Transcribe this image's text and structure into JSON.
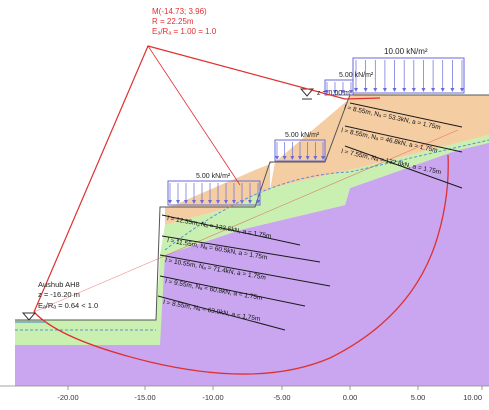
{
  "circle": {
    "center_label": "M(-14.73; 3.96)",
    "radius_label": "R = 22.25m",
    "ratio_label": "Eₐ/Rₐ = 1.00 = 1.0"
  },
  "loads": [
    {
      "label": "10.00 kN/m²"
    },
    {
      "label": "5.00 kN/m²"
    },
    {
      "label": "5.00 kN/m²"
    },
    {
      "label": "5.00 kN/m²"
    }
  ],
  "water_level": {
    "label": "z = 0.00 m"
  },
  "excavation": {
    "title": "Aushub AH8",
    "depth": "z = -16.20 m",
    "ratio": "Eₐ/Rₐ = 0.64 < 1.0"
  },
  "anchors": [
    {
      "label": "l = 8.55m, Nₐ = 53.3kN, a = 1.75m"
    },
    {
      "label": "l = 8.55m, Nₐ = 46.8kN, a = 1.75m"
    },
    {
      "label": "l = 7.55m, Nₐ = 132.8kN, a = 1.75m"
    },
    {
      "label": "l = 12.55m, Nₐ = 133.5kN, a = 1.75m"
    },
    {
      "label": "l = 11.55m, Nₐ = 60.5kN, a = 1.75m"
    },
    {
      "label": "l = 10.55m, Nₐ = 71.4kN, a = 1.75m"
    },
    {
      "label": "l = 9.55m, Nₐ = 60.8kN, a = 1.75m"
    },
    {
      "label": "l = 8.55m, Nₐ = 63.0kN, a = 1.75m"
    }
  ],
  "x_axis": {
    "ticks": [
      "-20.00",
      "-15.00",
      "-10.00",
      "-5.00",
      "0.00",
      "5.00",
      "10.00"
    ]
  },
  "colors": {
    "failure": "#e03030",
    "anchor": "#1a1a1a",
    "soil_top": "#f5cda3",
    "soil_mid": "#c9f0b0",
    "soil_bottom": "#c9a6ef",
    "load": "#6a6ad8",
    "water": "#5b8fd6"
  }
}
